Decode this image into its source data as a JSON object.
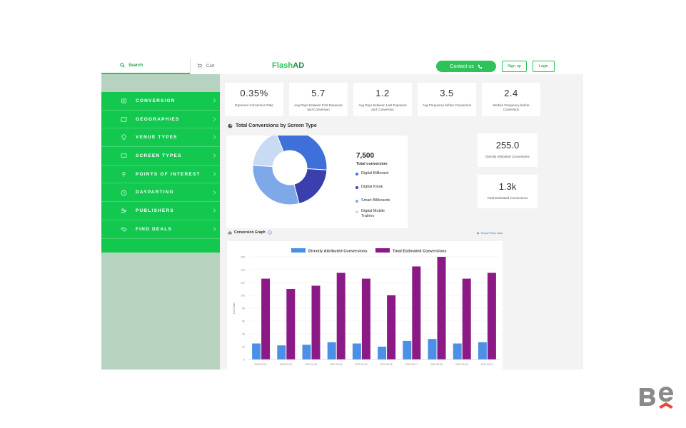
{
  "header": {
    "search_label": "Search",
    "cart_label": "Cart",
    "logo_prefix": "Flash",
    "logo_suffix": "AD",
    "contact_label": "Contact us",
    "signup_label": "Sign up",
    "login_label": "Login",
    "accent_color": "#2ec25a"
  },
  "sidebar": {
    "items": [
      {
        "label": "CONVERSION",
        "icon": "conversion-icon"
      },
      {
        "label": "GEOGRAPHIES",
        "icon": "map-icon"
      },
      {
        "label": "VENUE TYPES",
        "icon": "pin-icon"
      },
      {
        "label": "SCREEN TYPES",
        "icon": "screen-icon"
      },
      {
        "label": "POINTS OF INTEREST",
        "icon": "poi-icon"
      },
      {
        "label": "DAYPARTING",
        "icon": "clock-icon"
      },
      {
        "label": "PUBLISHERS",
        "icon": "publishers-icon"
      },
      {
        "label": "FIND DEALS",
        "icon": "deals-icon"
      }
    ],
    "color": "#12c84f"
  },
  "kpis": [
    {
      "value": "0.35%",
      "label": "Exposure Conversion Rate"
    },
    {
      "value": "5.7",
      "label": "Avg Days between First Exposure and Conversion"
    },
    {
      "value": "1.2",
      "label": "Avg Days between Last Exposure and Conversion"
    },
    {
      "value": "3.5",
      "label": "Avg Frequency before Conversion"
    },
    {
      "value": "2.4",
      "label": "Median Frequency before Conversion"
    }
  ],
  "screen_type": {
    "title": "Total Conversions by Screen Type",
    "total_value": "7,500",
    "total_label": "Total conversion",
    "legend": [
      {
        "label": "Digital Billboard",
        "color": "#3f6fd8"
      },
      {
        "label": "Digital Kiosk",
        "color": "#3b3fae"
      },
      {
        "label": "Smart Billboards",
        "color": "#7fa8e8"
      },
      {
        "label": "Digital Mobile Trailers",
        "color": "#c9dbf3"
      }
    ]
  },
  "side_kpis": [
    {
      "value": "255.0",
      "label": "Directly Attributed Conversions"
    },
    {
      "value": "1.3k",
      "label": "Total Estimated Conversions"
    }
  ],
  "graph": {
    "title": "Conversion Graph",
    "export_label": "Export Raw Data"
  },
  "chart_data": [
    {
      "type": "pie",
      "title": "Total Conversions by Screen Type",
      "labels": [
        "Digital Billboard",
        "Digital Kiosk",
        "Smart Billboards",
        "Digital Mobile Trailers"
      ],
      "values": [
        32,
        20,
        30,
        18
      ],
      "colors": [
        "#3f6fd8",
        "#3b3fae",
        "#7fa8e8",
        "#c9dbf3"
      ],
      "donut": true
    },
    {
      "type": "bar",
      "categories": [
        "2020-03-01",
        "2020-03-02",
        "2020-03-03",
        "2020-03-04",
        "2020-03-05",
        "2020-03-06",
        "2020-03-07",
        "2020-03-08",
        "2020-03-09",
        "2020-03-10"
      ],
      "series": [
        {
          "name": "Directly Attributed Conversions",
          "values": [
            25,
            22,
            23,
            27,
            25,
            20,
            29,
            32,
            25,
            27
          ],
          "color": "#4c8fe6"
        },
        {
          "name": "Total Estimated Conversions",
          "values": [
            126,
            110,
            115,
            135,
            126,
            100,
            145,
            160,
            126,
            135
          ],
          "color": "#8b1a87"
        }
      ],
      "ylabel": "# of Conv",
      "ylim": [
        0,
        160
      ],
      "yticks": [
        "0",
        "20",
        "40",
        "60",
        "80",
        "100",
        "120",
        "140",
        "160"
      ],
      "legend": "top",
      "grid": true
    }
  ]
}
